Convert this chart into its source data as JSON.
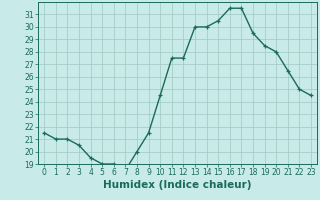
{
  "x": [
    0,
    1,
    2,
    3,
    4,
    5,
    6,
    7,
    8,
    9,
    10,
    11,
    12,
    13,
    14,
    15,
    16,
    17,
    18,
    19,
    20,
    21,
    22,
    23
  ],
  "y": [
    21.5,
    21.0,
    21.0,
    20.5,
    19.5,
    19.0,
    19.0,
    18.5,
    20.0,
    21.5,
    24.5,
    27.5,
    27.5,
    30.0,
    30.0,
    30.5,
    31.5,
    31.5,
    29.5,
    28.5,
    28.0,
    26.5,
    25.0,
    24.5
  ],
  "line_color": "#1a6b5a",
  "marker": "+",
  "marker_size": 3.5,
  "bg_color": "#c8eae8",
  "grid_color": "#a0c8c4",
  "xlabel": "Humidex (Indice chaleur)",
  "xlim": [
    -0.5,
    23.5
  ],
  "ylim": [
    19,
    32
  ],
  "yticks": [
    19,
    20,
    21,
    22,
    23,
    24,
    25,
    26,
    27,
    28,
    29,
    30,
    31
  ],
  "xticks": [
    0,
    1,
    2,
    3,
    4,
    5,
    6,
    7,
    8,
    9,
    10,
    11,
    12,
    13,
    14,
    15,
    16,
    17,
    18,
    19,
    20,
    21,
    22,
    23
  ],
  "tick_label_fontsize": 5.5,
  "xlabel_fontsize": 7.5,
  "linewidth": 1.0
}
